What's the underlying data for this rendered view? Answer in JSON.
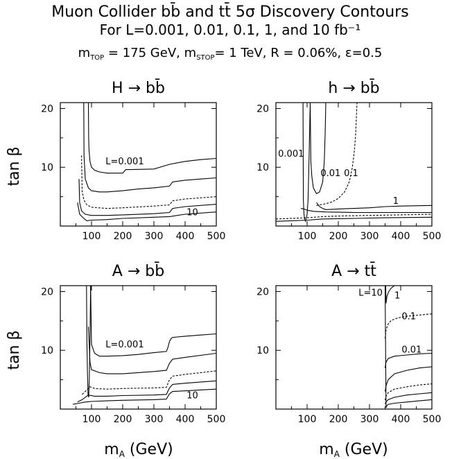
{
  "figure": {
    "title": "Muon Collider bb̄ and tt̄ 5σ Discovery Contours",
    "subtitle": "For L=0.001, 0.01, 0.1, 1, and 10 fb⁻¹",
    "params": "m_TOP = 175 GeV, m_STOP = 1 TeV, R = 0.06%, ε=0.5",
    "params_parts": {
      "m_top_sym": "m",
      "m_top_sub": "TOP",
      "m_top_val": " = 175 GeV, ",
      "m_stop_sym": "m",
      "m_stop_sub": "STOP",
      "m_stop_val": "= 1 TeV, R = 0.06%, ε=0.5"
    },
    "ylabel": "tan β",
    "xlabel_sym": "m",
    "xlabel_sub": "A",
    "xlabel_rest": " (GeV)"
  },
  "chart_data": [
    {
      "type": "line",
      "title": "H → bb̄",
      "xlabel": "m_A (GeV)",
      "ylabel": "tan β",
      "xlim": [
        0,
        500
      ],
      "ylim": [
        0,
        21
      ],
      "xticks": [
        100,
        200,
        300,
        400,
        500
      ],
      "yticks": [
        10,
        20
      ],
      "grid": false,
      "annotations": [
        {
          "text": "L=0.001",
          "x": 145,
          "y": 10.5
        },
        {
          "text": "10",
          "x": 405,
          "y": 1.8
        }
      ],
      "series": [
        {
          "dashed": false,
          "x": [
            90,
            91,
            92,
            95,
            100,
            110,
            125,
            150,
            200,
            210,
            225,
            300,
            350,
            400,
            450,
            500
          ],
          "y": [
            21,
            15,
            13,
            11,
            10,
            9.5,
            9.2,
            9.0,
            9.0,
            9.6,
            9.6,
            9.7,
            10.5,
            11.0,
            11.3,
            11.5
          ]
        },
        {
          "dashed": false,
          "x": [
            75,
            76,
            80,
            90,
            100,
            125,
            150,
            200,
            250,
            300,
            350,
            360,
            400,
            450,
            500
          ],
          "y": [
            21,
            12,
            8.0,
            6.5,
            6.0,
            5.8,
            5.8,
            6.0,
            6.3,
            6.5,
            6.8,
            7.5,
            7.8,
            8.0,
            8.2
          ]
        },
        {
          "dashed": true,
          "x": [
            68,
            70,
            75,
            85,
            100,
            150,
            200,
            300,
            350,
            360,
            400,
            500
          ],
          "y": [
            12,
            6,
            4.5,
            3.6,
            3.2,
            3.0,
            3.1,
            3.4,
            3.6,
            4.3,
            4.6,
            5.0
          ]
        },
        {
          "dashed": false,
          "x": [
            60,
            62,
            68,
            80,
            100,
            150,
            200,
            300,
            350,
            360,
            400,
            500
          ],
          "y": [
            8,
            4,
            2.6,
            2.0,
            1.8,
            1.8,
            1.9,
            2.1,
            2.3,
            3.0,
            3.3,
            3.7
          ]
        },
        {
          "dashed": false,
          "x": [
            55,
            62,
            75,
            85,
            100,
            150,
            200,
            300,
            350,
            400,
            500
          ],
          "y": [
            4,
            2.0,
            1.3,
            0.9,
            1.0,
            1.1,
            1.3,
            1.5,
            1.6,
            2.0,
            2.4
          ]
        }
      ]
    },
    {
      "type": "line",
      "title": "h → bb̄",
      "xlabel": "m_A (GeV)",
      "ylabel": "tan β",
      "xlim": [
        0,
        500
      ],
      "ylim": [
        0,
        21
      ],
      "xticks": [
        100,
        200,
        300,
        400,
        500
      ],
      "yticks": [
        10,
        20
      ],
      "grid": false,
      "annotations": [
        {
          "text": "0.001",
          "x": 7,
          "y": 11.8
        },
        {
          "text": "0.01",
          "x": 143,
          "y": 8.5
        },
        {
          "text": "0.1",
          "x": 218,
          "y": 8.5
        },
        {
          "text": "1",
          "x": 375,
          "y": 3.8
        }
      ],
      "series": [
        {
          "dashed": false,
          "x": [
            87,
            88,
            90,
            92,
            95,
            97,
            100,
            103,
            106,
            110
          ],
          "y": [
            21,
            4.5,
            2.0,
            1.2,
            0.8,
            1.2,
            2.0,
            4.5,
            11.0,
            21
          ]
        },
        {
          "dashed": false,
          "x": [
            110,
            112,
            115,
            120,
            130,
            140,
            150,
            155,
            158,
            160
          ],
          "y": [
            21,
            11,
            8.5,
            6.5,
            5.5,
            5.8,
            7.5,
            11,
            16,
            21
          ]
        },
        {
          "dashed": true,
          "x": [
            130,
            140,
            160,
            180,
            200,
            220,
            235,
            245,
            252,
            256,
            258,
            260
          ],
          "y": [
            3.5,
            3.6,
            3.8,
            4.1,
            4.7,
            5.8,
            7.5,
            10,
            13,
            16,
            18.5,
            21
          ]
        },
        {
          "dashed": false,
          "x": [
            130,
            140,
            150,
            160,
            200,
            300,
            350,
            400,
            500
          ],
          "y": [
            4.0,
            3.3,
            3.0,
            2.8,
            2.9,
            3.1,
            3.3,
            3.4,
            3.5
          ]
        },
        {
          "dashed": false,
          "x": [
            80,
            90,
            100,
            120,
            160,
            250,
            350,
            500
          ],
          "y": [
            3.0,
            2.9,
            2.7,
            2.5,
            2.4,
            2.3,
            2.3,
            2.3
          ]
        },
        {
          "dashed": true,
          "x": [
            0,
            50,
            100,
            150,
            200,
            300,
            400,
            500
          ],
          "y": [
            1.2,
            1.3,
            1.4,
            1.6,
            1.7,
            1.8,
            1.9,
            2.0
          ]
        },
        {
          "dashed": false,
          "x": [
            0,
            50,
            100,
            150,
            250,
            350,
            500
          ],
          "y": [
            0.8,
            0.9,
            1.0,
            1.2,
            1.3,
            1.4,
            1.5
          ]
        }
      ]
    },
    {
      "type": "line",
      "title": "A → bb̄",
      "xlabel": "m_A (GeV)",
      "ylabel": "tan β",
      "xlim": [
        0,
        500
      ],
      "ylim": [
        0,
        21
      ],
      "xticks": [
        100,
        200,
        300,
        400,
        500
      ],
      "yticks": [
        10,
        20
      ],
      "grid": false,
      "annotations": [
        {
          "text": "L=0.001",
          "x": 145,
          "y": 10.5
        },
        {
          "text": "10",
          "x": 405,
          "y": 1.8
        }
      ],
      "series": [
        {
          "dashed": false,
          "x": [
            84,
            85,
            87,
            89,
            91,
            93,
            95,
            97
          ],
          "y": [
            21,
            12,
            6,
            2.5,
            2.0,
            5,
            12,
            21
          ]
        },
        {
          "dashed": false,
          "x": [
            97,
            100,
            110,
            125,
            150,
            200,
            250,
            300,
            340,
            345,
            350,
            355,
            360,
            400,
            450,
            500
          ],
          "y": [
            21,
            11,
            9.5,
            9.0,
            9.0,
            9.1,
            9.3,
            9.6,
            9.8,
            10.5,
            11.5,
            12.0,
            12.2,
            12.4,
            12.6,
            12.8
          ]
        },
        {
          "dashed": false,
          "x": [
            90,
            95,
            100,
            125,
            150,
            200,
            250,
            300,
            340,
            350,
            360,
            400,
            500
          ],
          "y": [
            14,
            8,
            6.7,
            6.2,
            6.0,
            6.0,
            6.2,
            6.4,
            6.6,
            7.8,
            8.5,
            8.8,
            9.5
          ]
        },
        {
          "dashed": true,
          "x": [
            70,
            80,
            95,
            110,
            150,
            200,
            300,
            340,
            350,
            360,
            400,
            500
          ],
          "y": [
            2.5,
            3.0,
            3.8,
            3.5,
            3.4,
            3.5,
            3.6,
            3.7,
            5.0,
            5.6,
            5.9,
            6.5
          ]
        },
        {
          "dashed": false,
          "x": [
            55,
            70,
            90,
            110,
            150,
            200,
            300,
            340,
            350,
            360,
            400,
            500
          ],
          "y": [
            1.2,
            1.6,
            2.4,
            2.2,
            2.2,
            2.3,
            2.4,
            2.5,
            3.6,
            4.2,
            4.4,
            4.8
          ]
        },
        {
          "dashed": false,
          "x": [
            40,
            60,
            80,
            100,
            150,
            200,
            300,
            340,
            350,
            360,
            400,
            500
          ],
          "y": [
            0.8,
            1.0,
            1.2,
            1.3,
            1.4,
            1.5,
            1.6,
            1.7,
            2.6,
            3.0,
            3.1,
            3.4
          ]
        }
      ]
    },
    {
      "type": "line",
      "title": "A → tt̄",
      "xlabel": "m_A (GeV)",
      "ylabel": "tan β",
      "xlim": [
        0,
        500
      ],
      "ylim": [
        0,
        21
      ],
      "xticks": [
        100,
        200,
        300,
        400,
        500
      ],
      "yticks": [
        10,
        20
      ],
      "grid": false,
      "annotations": [
        {
          "text": "L=10",
          "x": 265,
          "y": 19.3
        },
        {
          "text": "1",
          "x": 380,
          "y": 18.8
        },
        {
          "text": "0.1",
          "x": 403,
          "y": 15.3
        },
        {
          "text": "0.01",
          "x": 403,
          "y": 9.6
        }
      ],
      "series": [
        {
          "dashed": false,
          "x": [
            352,
            353,
            356,
            360,
            365,
            370,
            375,
            380
          ],
          "y": [
            21,
            18,
            19.2,
            19.8,
            20.3,
            20.6,
            20.8,
            21
          ]
        },
        {
          "dashed": true,
          "x": [
            350,
            353,
            360,
            370,
            390,
            420,
            460,
            500
          ],
          "y": [
            12,
            13.5,
            14.5,
            15.1,
            15.5,
            15.8,
            16.0,
            16.2
          ]
        },
        {
          "dashed": false,
          "x": [
            350,
            353,
            360,
            380,
            420,
            460,
            500
          ],
          "y": [
            7.0,
            8.0,
            8.6,
            9.0,
            9.2,
            9.4,
            9.5
          ]
        },
        {
          "dashed": false,
          "x": [
            350,
            353,
            360,
            380,
            420,
            460,
            500
          ],
          "y": [
            3.0,
            4.0,
            5.0,
            6.0,
            6.6,
            7.0,
            7.2
          ]
        },
        {
          "dashed": true,
          "x": [
            350,
            353,
            360,
            380,
            420,
            460,
            500
          ],
          "y": [
            1.5,
            2.2,
            2.8,
            3.4,
            3.8,
            4.1,
            4.3
          ]
        },
        {
          "dashed": false,
          "x": [
            350,
            353,
            360,
            380,
            420,
            460,
            500
          ],
          "y": [
            0.9,
            1.2,
            1.6,
            2.0,
            2.4,
            2.6,
            2.8
          ]
        },
        {
          "dashed": false,
          "x": [
            350,
            353,
            356,
            360,
            380,
            420,
            460,
            500
          ],
          "y": [
            21,
            0.2,
            0.6,
            0.8,
            1.0,
            1.2,
            1.4,
            1.6
          ]
        }
      ]
    }
  ]
}
